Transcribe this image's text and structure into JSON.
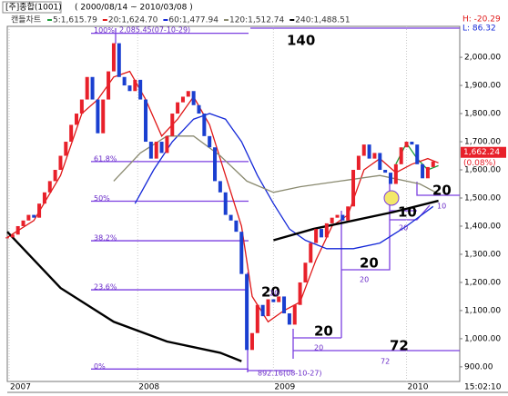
{
  "chart_data": {
    "type": "candlestick",
    "title": "[주]종합(1001)",
    "subtitle": "( 2000/08/14 ~ 2010/03/08 )",
    "chart_label": "캔들차트",
    "high_label": "H: -20.29",
    "low_label": "L: 86.32",
    "clock": "15:02:10",
    "xlim": [
      0,
      170
    ],
    "ylim": [
      848,
      2110
    ],
    "xticks": [
      {
        "value": 0.7,
        "label": "2007"
      },
      {
        "value": 49,
        "label": "2008"
      },
      {
        "value": 100,
        "label": "2009"
      },
      {
        "value": 150,
        "label": "2010"
      }
    ],
    "yticks": [
      {
        "value": 900,
        "label": "900.00"
      },
      {
        "value": 1000,
        "label": "1,000.00"
      },
      {
        "value": 1100,
        "label": "1,100.00"
      },
      {
        "value": 1200,
        "label": "1,200.00"
      },
      {
        "value": 1300,
        "label": "1,300.00"
      },
      {
        "value": 1400,
        "label": "1,400.00"
      },
      {
        "value": 1500,
        "label": "1,500.00"
      },
      {
        "value": 1600,
        "label": "1,600.00"
      },
      {
        "value": 1700,
        "label": "1,700.00"
      },
      {
        "value": 1800,
        "label": "1,800.00"
      },
      {
        "value": 1900,
        "label": "1,900.00"
      },
      {
        "value": 2000,
        "label": "2,000.00"
      }
    ],
    "up_color": "#e8202a",
    "down_color": "#1a3fd0",
    "x": [
      0,
      2,
      4,
      6,
      8,
      10,
      12,
      14,
      16,
      18,
      20,
      22,
      24,
      26,
      28,
      30,
      32,
      34,
      36,
      38,
      40,
      42,
      44,
      46,
      48,
      50,
      52,
      54,
      56,
      58,
      60,
      62,
      64,
      66,
      68,
      70,
      72,
      74,
      76,
      78,
      80,
      82,
      84,
      86,
      88,
      90,
      92,
      94,
      96,
      98,
      100,
      102,
      104,
      106,
      108,
      110,
      112,
      114,
      116,
      118,
      120,
      122,
      124,
      126,
      128,
      130,
      132,
      134,
      136,
      138,
      140,
      142,
      144,
      146,
      148,
      150,
      152,
      154,
      156,
      158,
      160
    ],
    "values": [
      1360,
      1370,
      1400,
      1420,
      1440,
      1430,
      1480,
      1520,
      1560,
      1600,
      1650,
      1700,
      1760,
      1800,
      1850,
      1930,
      1850,
      1730,
      1850,
      1950,
      2050,
      1930,
      1900,
      1880,
      1920,
      1850,
      1700,
      1640,
      1700,
      1660,
      1720,
      1800,
      1840,
      1860,
      1880,
      1830,
      1800,
      1720,
      1680,
      1560,
      1520,
      1440,
      1420,
      1380,
      1230,
      960,
      1020,
      1120,
      1080,
      1140,
      1130,
      1150,
      1090,
      1050,
      1120,
      1200,
      1270,
      1340,
      1390,
      1360,
      1410,
      1430,
      1440,
      1420,
      1470,
      1600,
      1650,
      1690,
      1640,
      1660,
      1600,
      1590,
      1550,
      1620,
      1680,
      1700,
      1690,
      1620,
      1570,
      1610,
      1630
    ],
    "series": [
      {
        "name": "5:1,615.79",
        "color": "#1e9e3a",
        "x": [
          146,
          150,
          154,
          158,
          162
        ],
        "values": [
          1620,
          1695,
          1640,
          1600,
          1615
        ]
      },
      {
        "name": "20:1,624.70",
        "color": "#e01818",
        "x": [
          0,
          10,
          20,
          28,
          34,
          40,
          46,
          52,
          58,
          64,
          70,
          76,
          82,
          88,
          92,
          98,
          104,
          110,
          116,
          122,
          128,
          134,
          140,
          146,
          152,
          158,
          162
        ],
        "values": [
          1360,
          1420,
          1580,
          1800,
          1850,
          1930,
          1950,
          1850,
          1720,
          1780,
          1860,
          1760,
          1580,
          1400,
          1150,
          1060,
          1100,
          1130,
          1280,
          1400,
          1440,
          1600,
          1640,
          1590,
          1620,
          1640,
          1625
        ]
      },
      {
        "name": "60:1,477.94",
        "color": "#1428d8",
        "x": [
          48,
          55,
          62,
          70,
          76,
          82,
          88,
          94,
          100,
          106,
          112,
          120,
          130,
          140,
          150,
          160
        ],
        "values": [
          1480,
          1600,
          1700,
          1780,
          1800,
          1780,
          1700,
          1580,
          1480,
          1390,
          1350,
          1320,
          1320,
          1340,
          1400,
          1470
        ]
      },
      {
        "name": "120:1,512.74",
        "color": "#8a8a70",
        "x": [
          40,
          50,
          60,
          70,
          80,
          90,
          100,
          110,
          125,
          140,
          155,
          162
        ],
        "values": [
          1560,
          1660,
          1720,
          1720,
          1650,
          1560,
          1520,
          1540,
          1560,
          1580,
          1550,
          1515
        ]
      },
      {
        "name": "240:1,488.51",
        "color": "#000000",
        "x": [
          0,
          20,
          40,
          60,
          80,
          88,
          94,
          100,
          115,
          130,
          145,
          162
        ],
        "values": [
          1380,
          1180,
          1060,
          990,
          950,
          920,
          null,
          1350,
          1390,
          1420,
          1450,
          1490
        ]
      }
    ],
    "fib_levels": [
      {
        "label": "100%",
        "value": 2085.45
      },
      {
        "label": "61.8%",
        "value": 1629.6
      },
      {
        "label": "50%",
        "value": 1488.8
      },
      {
        "label": "38.2%",
        "value": 1348
      },
      {
        "label": "23.6%",
        "value": 1173.8
      },
      {
        "label": "0%",
        "value": 892.16
      }
    ],
    "peak_label": "2,085.45(07-10-29)",
    "trough_label": "892.16(08-10-27)",
    "last": {
      "value": 1662.24,
      "label": "1,662.24",
      "change": "(0.08%)"
    },
    "annotations": [
      "140",
      "20",
      "20",
      "20",
      "20",
      "10",
      "72",
      "20",
      "20",
      "20",
      "10",
      "20",
      "72"
    ]
  }
}
